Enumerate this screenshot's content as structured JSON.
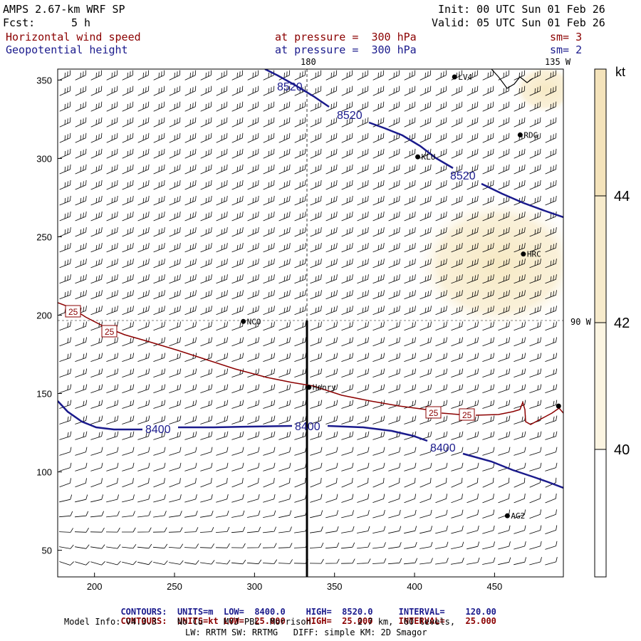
{
  "header": {
    "model_title": "AMPS 2.67-km WRF SP",
    "init_label": "Init: 00 UTC Sun 01 Feb 26",
    "fcst_label": "Fcst:",
    "fcst_value": "5 h",
    "valid_label": "Valid: 05 UTC Sun 01 Feb 26",
    "field1_name": "Horizontal wind speed",
    "field1_level": "at pressure =  300 hPa",
    "field1_sm": "sm= 3",
    "field2_name": "Geopotential height",
    "field2_level": "at pressure =  300 hPa",
    "field2_sm": "sm= 2"
  },
  "map": {
    "longitude_labels": {
      "top_center": "180",
      "top_right": "135 W",
      "right_mid": "90 W"
    },
    "stations": [
      {
        "name": "LV4",
        "x": 425,
        "y": 352
      },
      {
        "name": "RDG",
        "x": 466,
        "y": 315
      },
      {
        "name": "KLU",
        "x": 402,
        "y": 301
      },
      {
        "name": "HRC",
        "x": 468,
        "y": 239
      },
      {
        "name": "NCO",
        "x": 293,
        "y": 196
      },
      {
        "name": "Henry",
        "x": 334,
        "y": 154
      },
      {
        "name": "",
        "x": 490,
        "y": 142
      },
      {
        "name": "AG2",
        "x": 458,
        "y": 72
      }
    ],
    "height_contours": [
      {
        "value": "8520",
        "labels": [
          "8520",
          "8520",
          "8520"
        ],
        "color": "#1a1a8c"
      },
      {
        "value": "8400",
        "labels": [
          "8400",
          "8400",
          "8400"
        ],
        "color": "#1a1a8c"
      }
    ],
    "speed_contours": [
      {
        "value": "25",
        "labels": [
          "25",
          "25",
          "25",
          "25"
        ],
        "color": "#8b0000"
      }
    ]
  },
  "chart_data": {
    "type": "heatmap",
    "title": "Horizontal wind speed / Geopotential height at 300 hPa",
    "x_axis": {
      "range": [
        177,
        493
      ],
      "ticks": [
        "200",
        "250",
        "300",
        "350",
        "400",
        "450"
      ],
      "tick_values": [
        200,
        250,
        300,
        350,
        400,
        450
      ]
    },
    "y_axis": {
      "range": [
        33,
        357
      ],
      "ticks": [
        "50",
        "100",
        "150",
        "200",
        "250",
        "300",
        "350"
      ],
      "tick_values": [
        50,
        100,
        150,
        200,
        250,
        300,
        350
      ]
    },
    "colorbar": {
      "unit": "kt",
      "labels": [
        "40",
        "42",
        "44"
      ],
      "levels": [
        40,
        42,
        44
      ],
      "colors": [
        "#ffffff",
        "#fcf5e2",
        "#f7ebcc",
        "#f4e3bb"
      ]
    },
    "cross_section_x": 334
  },
  "footer": {
    "contours_label": "CONTOURS:",
    "line1_units": "UNITS=m",
    "line1_low": "LOW=  8400.0",
    "line1_high": "HIGH=  8520.0",
    "line1_interval": "INTERVAL=    120.00",
    "line2_units": "UNITS=kt",
    "line2_low": "LOW=  25.000",
    "line2_high": "HIGH=  25.000",
    "line2_interval": "INTERVAL=    25.000",
    "model_info": "Model Info: V4.3.3    No Cu    MYJ PBL  Morrison         2.7 km,  60 levels,",
    "physics_info": "LW: RRTM SW: RRTMG   DIFF: simple KM: 2D Smagor"
  }
}
